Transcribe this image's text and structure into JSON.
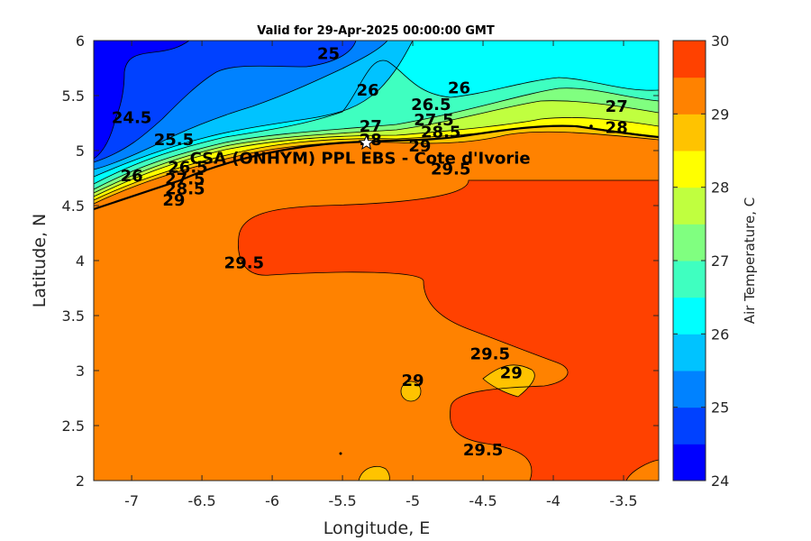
{
  "chart_data": {
    "type": "contour",
    "title": "Valid for 29-Apr-2025 00:00:00 GMT",
    "xlabel": "Longitude, E",
    "ylabel": "Latitude, N",
    "xlim": [
      -7.27,
      -3.25
    ],
    "ylim": [
      2,
      6
    ],
    "x_ticks": [
      "-7",
      "-6.5",
      "-6",
      "-5.5",
      "-5",
      "-4.5",
      "-4",
      "-3.5"
    ],
    "x_tick_values": [
      -7,
      -6.5,
      -6,
      -5.5,
      -5,
      -4.5,
      -4,
      -3.5
    ],
    "y_ticks": [
      "2",
      "2.5",
      "3",
      "3.5",
      "4",
      "4.5",
      "5",
      "5.5",
      "6"
    ],
    "y_tick_values": [
      2,
      2.5,
      3,
      3.5,
      4,
      4.5,
      5,
      5.5,
      6
    ],
    "colorbar": {
      "label": "Air Temperature, C",
      "min": 24,
      "max": 30,
      "ticks": [
        "24",
        "25",
        "26",
        "27",
        "28",
        "29",
        "30"
      ],
      "tick_values": [
        24,
        25,
        26,
        27,
        28,
        29,
        30
      ],
      "level_step": 0.5,
      "colors": [
        "#0000ff",
        "#0041ff",
        "#0082ff",
        "#00c3ff",
        "#00ffff",
        "#3fffc0",
        "#80ff80",
        "#c0ff3f",
        "#ffff00",
        "#ffc300",
        "#ff8200",
        "#ff4100"
      ]
    },
    "site": {
      "label": "CSA (ONHYM) PPL EBS - Cote d'Ivorie",
      "lon": -5.33,
      "lat": 5.07
    },
    "contour_labels": [
      {
        "text": "25",
        "lon": -5.6,
        "lat": 5.88
      },
      {
        "text": "24.5",
        "lon": -7.0,
        "lat": 5.3
      },
      {
        "text": "25.5",
        "lon": -6.7,
        "lat": 5.1
      },
      {
        "text": "26",
        "lon": -5.32,
        "lat": 5.55
      },
      {
        "text": "26",
        "lon": -4.67,
        "lat": 5.57
      },
      {
        "text": "26",
        "lon": -7.0,
        "lat": 4.77
      },
      {
        "text": "26.5",
        "lon": -4.87,
        "lat": 5.42
      },
      {
        "text": "26.5",
        "lon": -6.6,
        "lat": 4.85
      },
      {
        "text": "27",
        "lon": -5.3,
        "lat": 5.22
      },
      {
        "text": "27",
        "lon": -3.55,
        "lat": 5.4
      },
      {
        "text": "27.5",
        "lon": -4.85,
        "lat": 5.28
      },
      {
        "text": "27.5",
        "lon": -6.62,
        "lat": 4.74
      },
      {
        "text": "28",
        "lon": -5.3,
        "lat": 5.1
      },
      {
        "text": "28",
        "lon": -3.55,
        "lat": 5.21
      },
      {
        "text": "28.5",
        "lon": -4.8,
        "lat": 5.17
      },
      {
        "text": "28.5",
        "lon": -6.62,
        "lat": 4.65
      },
      {
        "text": "29",
        "lon": -4.95,
        "lat": 5.04
      },
      {
        "text": "29",
        "lon": -6.7,
        "lat": 4.55
      },
      {
        "text": "29",
        "lon": -5.0,
        "lat": 2.91
      },
      {
        "text": "29",
        "lon": -4.3,
        "lat": 2.98
      },
      {
        "text": "29.5",
        "lon": -4.73,
        "lat": 4.83
      },
      {
        "text": "29.5",
        "lon": -6.2,
        "lat": 3.98
      },
      {
        "text": "29.5",
        "lon": -4.45,
        "lat": 3.15
      },
      {
        "text": "29.5",
        "lon": -4.5,
        "lat": 2.28
      }
    ]
  }
}
